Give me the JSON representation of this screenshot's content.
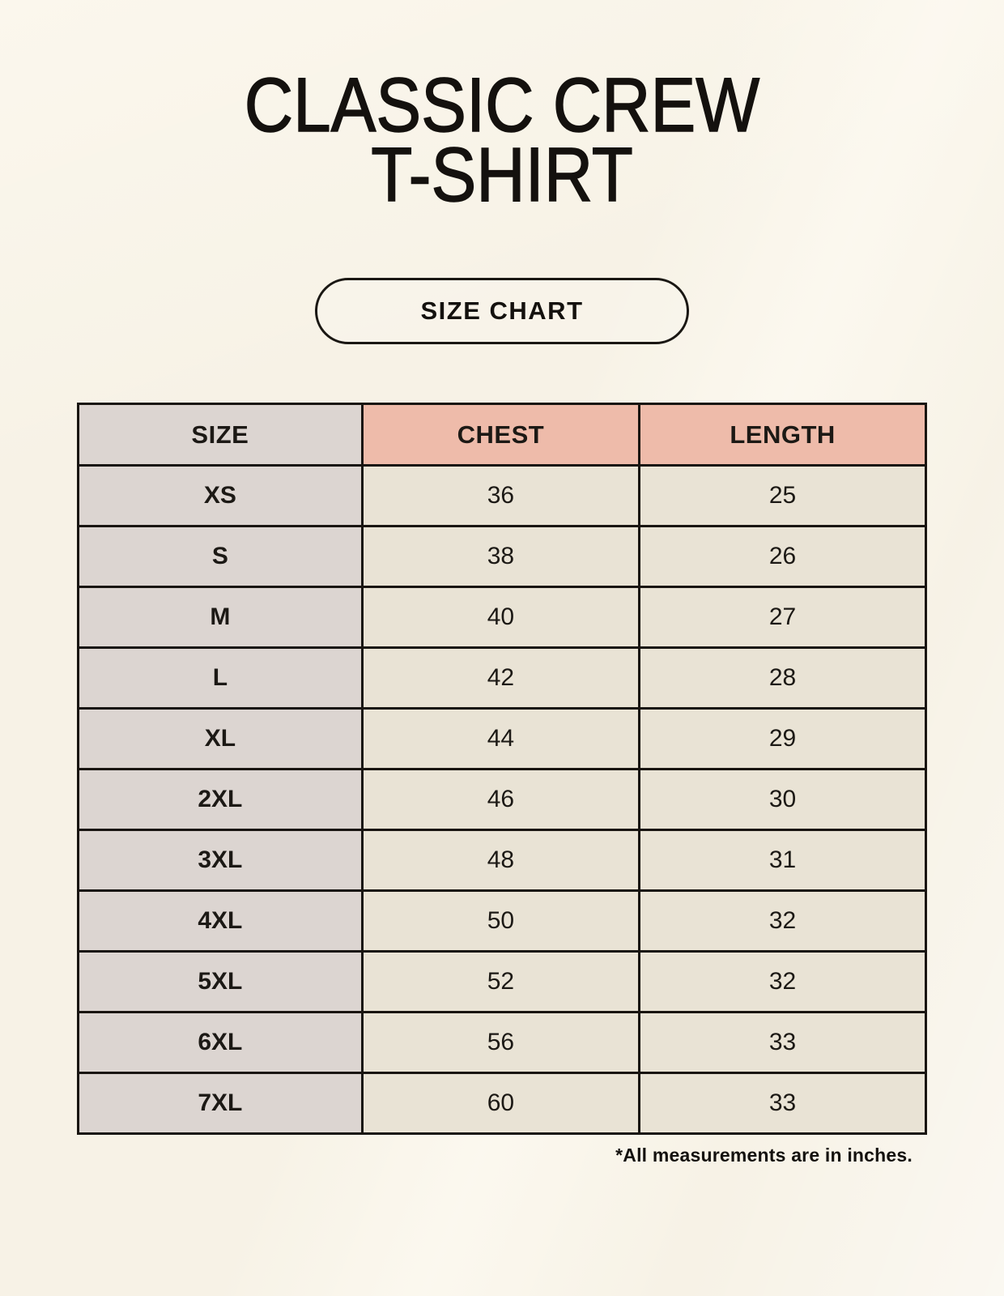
{
  "page": {
    "title_lines": [
      "CLASSIC CREW",
      "T-SHIRT"
    ],
    "size_chart_button": "SIZE CHART",
    "footnote": "*All measurements are in inches."
  },
  "colors": {
    "background": "#f7f2e6",
    "size_column_bg": "#dcd5d1",
    "header_accent_bg": "#eebbaa",
    "cell_bg": "#e9e3d5",
    "border": "#191511",
    "text": "#14110e"
  },
  "chart_data": {
    "type": "table",
    "title": "CLASSIC CREW T-SHIRT",
    "subtitle": "SIZE CHART",
    "columns": [
      "SIZE",
      "CHEST",
      "LENGTH"
    ],
    "rows": [
      [
        "XS",
        36,
        25
      ],
      [
        "S",
        38,
        26
      ],
      [
        "M",
        40,
        27
      ],
      [
        "L",
        42,
        28
      ],
      [
        "XL",
        44,
        29
      ],
      [
        "2XL",
        46,
        30
      ],
      [
        "3XL",
        48,
        31
      ],
      [
        "4XL",
        50,
        32
      ],
      [
        "5XL",
        52,
        32
      ],
      [
        "6XL",
        56,
        33
      ],
      [
        "7XL",
        60,
        33
      ]
    ],
    "units": "inches",
    "units_note": "*All measurements are in inches."
  }
}
